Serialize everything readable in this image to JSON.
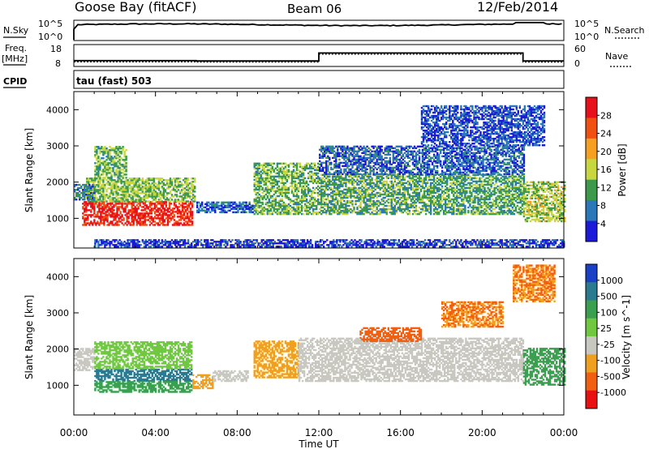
{
  "header": {
    "station": "Goose Bay (fitACF)",
    "beam": "Beam 06",
    "date": "12/Feb/2014"
  },
  "top_panels": {
    "nsky_label": "N.Sky",
    "nsky_ticks": [
      "10^5",
      "10^0"
    ],
    "nsearch_label": "N.Search",
    "nsearch_ticks": [
      "10^5",
      "10^0"
    ],
    "freq_label": "Freq.",
    "freq_unit": "[MHz]",
    "freq_ticks": [
      "18",
      "8"
    ],
    "nave_label": "Nave",
    "nave_ticks": [
      "60",
      "0"
    ],
    "cpid_label": "CPID",
    "cpid_value": "tau (fast) 503"
  },
  "x_axis": {
    "label": "Time UT",
    "ticks": [
      "00:00",
      "04:00",
      "08:00",
      "12:00",
      "16:00",
      "20:00",
      "00:00"
    ]
  },
  "power_panel": {
    "ylabel": "Slant Range [km]",
    "yticks": [
      "4000",
      "3000",
      "2000",
      "1000"
    ],
    "cbar_label": "Power [dB]",
    "cbar_ticks": [
      "28",
      "24",
      "20",
      "16",
      "12",
      "8",
      "4"
    ],
    "cbar_colors": [
      "#e8101a",
      "#f05010",
      "#f5a020",
      "#c8d640",
      "#3c9a4a",
      "#2a78b8",
      "#1a1ad8"
    ]
  },
  "velocity_panel": {
    "ylabel": "Slant Range [km]",
    "yticks": [
      "4000",
      "3000",
      "2000",
      "1000"
    ],
    "cbar_label": "Velocity [m s^-1]",
    "cbar_ticks": [
      "1000",
      "500",
      "100",
      "25",
      "-25",
      "-100",
      "-500",
      "-1000"
    ],
    "cbar_colors": [
      "#1a40c8",
      "#2a7a90",
      "#3aa050",
      "#70c840",
      "#c8c8c0",
      "#f0a020",
      "#f06010",
      "#e81010"
    ]
  },
  "chart_data": {
    "type": "heatmap",
    "x_range_hours": [
      0,
      24
    ],
    "y_range_km": [
      180,
      4500
    ],
    "nsky_log_range": [
      0,
      5
    ],
    "freq_range_mhz": [
      8,
      18
    ],
    "freq_segments": [
      {
        "start_h": 0,
        "end_h": 6,
        "value": 10.6
      },
      {
        "start_h": 6,
        "end_h": 12,
        "value": 10.4
      },
      {
        "start_h": 12,
        "end_h": 22,
        "value": 14.5
      },
      {
        "start_h": 22,
        "end_h": 24,
        "value": 10.4
      }
    ],
    "power_regions": [
      {
        "t0": 0.4,
        "t1": 5.8,
        "r0": 800,
        "r1": 1450,
        "value": 27
      },
      {
        "t0": 0.6,
        "t1": 5.9,
        "r0": 1450,
        "r1": 2100,
        "value": 14
      },
      {
        "t0": 0.0,
        "t1": 1.0,
        "r0": 1500,
        "r1": 1950,
        "value": 9
      },
      {
        "t0": 1.0,
        "t1": 2.6,
        "r0": 2100,
        "r1": 3000,
        "value": 13
      },
      {
        "t0": 6.0,
        "t1": 8.8,
        "r0": 1150,
        "r1": 1450,
        "value": 7
      },
      {
        "t0": 8.8,
        "t1": 12.0,
        "r0": 1100,
        "r1": 2500,
        "value": 13
      },
      {
        "t0": 12.0,
        "t1": 22.0,
        "r0": 1100,
        "r1": 2200,
        "value": 12
      },
      {
        "t0": 12.0,
        "t1": 22.0,
        "r0": 2200,
        "r1": 3000,
        "value": 7
      },
      {
        "t0": 17.0,
        "t1": 23.0,
        "r0": 3000,
        "r1": 4100,
        "value": 6
      },
      {
        "t0": 22.0,
        "t1": 24.0,
        "r0": 900,
        "r1": 2000,
        "value": 15
      },
      {
        "t0": 1.0,
        "t1": 24.0,
        "r0": 200,
        "r1": 400,
        "value": 5
      }
    ],
    "velocity_regions": [
      {
        "t0": 0.0,
        "t1": 1.0,
        "r0": 1400,
        "r1": 2000,
        "value": 0
      },
      {
        "t0": 1.0,
        "t1": 5.8,
        "r0": 1100,
        "r1": 1450,
        "value": 350
      },
      {
        "t0": 1.0,
        "t1": 5.8,
        "r0": 800,
        "r1": 1100,
        "value": 70
      },
      {
        "t0": 1.0,
        "t1": 5.8,
        "r0": 1450,
        "r1": 2200,
        "value": 40
      },
      {
        "t0": 5.8,
        "t1": 6.8,
        "r0": 900,
        "r1": 1300,
        "value": -150
      },
      {
        "t0": 6.8,
        "t1": 8.5,
        "r0": 1100,
        "r1": 1400,
        "value": 0
      },
      {
        "t0": 8.8,
        "t1": 11.0,
        "r0": 1200,
        "r1": 2200,
        "value": -200
      },
      {
        "t0": 11.0,
        "t1": 22.0,
        "r0": 1100,
        "r1": 2300,
        "value": 0
      },
      {
        "t0": 14.0,
        "t1": 17.0,
        "r0": 2200,
        "r1": 2600,
        "value": -600
      },
      {
        "t0": 18.0,
        "t1": 21.0,
        "r0": 2600,
        "r1": 3300,
        "value": -300
      },
      {
        "t0": 21.5,
        "t1": 23.5,
        "r0": 3300,
        "r1": 4300,
        "value": -300
      },
      {
        "t0": 22.0,
        "t1": 24.0,
        "r0": 1000,
        "r1": 2000,
        "value": 80
      }
    ]
  }
}
